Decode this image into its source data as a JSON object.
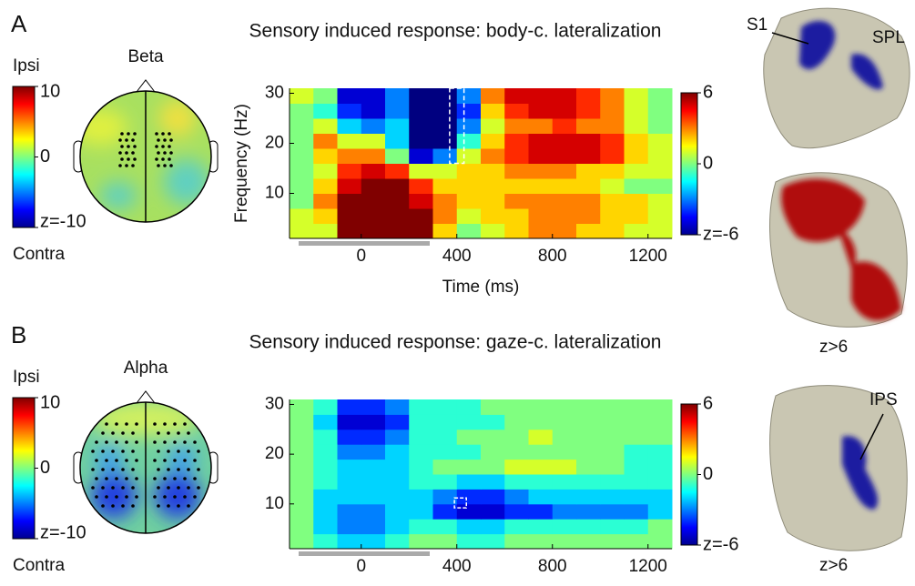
{
  "chart_data": [
    {
      "type": "heatmap",
      "panel": "A",
      "title": "Sensory induced response: body-c. lateralization",
      "xlabel": "Time (ms)",
      "ylabel": "Frequency (Hz)",
      "x": [
        -250,
        -150,
        -50,
        50,
        150,
        250,
        350,
        450,
        550,
        650,
        750,
        850,
        950,
        1050,
        1150,
        1250
      ],
      "y": [
        2.5,
        5.5,
        8.5,
        11.5,
        14.5,
        17.5,
        20.5,
        23.5,
        26.5,
        29.5
      ],
      "z": [
        [
          1,
          1,
          6,
          6,
          6,
          6,
          2,
          0,
          1,
          2,
          3,
          3,
          2,
          2,
          1,
          1
        ],
        [
          1,
          2,
          6,
          6,
          6,
          6,
          3,
          1,
          2,
          2,
          3,
          3,
          3,
          2,
          2,
          1
        ],
        [
          0,
          3,
          6,
          6,
          6,
          5,
          3,
          2,
          2,
          3,
          3,
          3,
          3,
          2,
          2,
          1
        ],
        [
          0,
          2,
          5,
          6,
          6,
          4,
          2,
          2,
          2,
          2,
          2,
          2,
          2,
          1,
          0,
          0
        ],
        [
          0,
          1,
          4,
          5,
          4,
          1,
          1,
          2,
          2,
          3,
          3,
          3,
          2,
          2,
          1,
          1
        ],
        [
          0,
          2,
          3,
          3,
          0,
          -5,
          -3,
          1,
          3,
          4,
          5,
          5,
          5,
          4,
          2,
          1
        ],
        [
          0,
          3,
          1,
          1,
          -2,
          -6,
          -6,
          -1,
          2,
          4,
          5,
          5,
          5,
          4,
          2,
          1
        ],
        [
          0,
          1,
          -2,
          -3,
          -2,
          -6,
          -6,
          -3,
          1,
          3,
          3,
          4,
          3,
          3,
          1,
          0
        ],
        [
          0,
          -1,
          -4,
          -5,
          -3,
          -6,
          -6,
          -4,
          2,
          4,
          5,
          5,
          4,
          3,
          1,
          0
        ],
        [
          1,
          0,
          -5,
          -5,
          -3,
          -6,
          -6,
          -3,
          3,
          5,
          5,
          5,
          4,
          3,
          1,
          0
        ]
      ],
      "xlim": [
        -300,
        1300
      ],
      "ylim": [
        1,
        31
      ],
      "xticks": [
        0,
        400,
        800,
        1200
      ],
      "yticks": [
        10,
        20,
        30
      ],
      "zlim": [
        -6,
        6
      ],
      "zticks": [
        6,
        0,
        {
          "value": -6,
          "label": "z=-6"
        }
      ],
      "topomap": {
        "band": "Beta",
        "top_label": "Ipsi",
        "bottom_label": "Contra",
        "zlim": [
          -10,
          10
        ],
        "zticks": [
          10,
          0,
          {
            "value": -10,
            "label": "z=-10"
          }
        ]
      },
      "brain_labels": [
        "S1",
        "SPL",
        "z>6"
      ]
    },
    {
      "type": "heatmap",
      "panel": "B",
      "title": "Sensory induced response: gaze-c. lateralization",
      "x": [
        -250,
        -150,
        -50,
        50,
        150,
        250,
        350,
        450,
        550,
        650,
        750,
        850,
        950,
        1050,
        1150,
        1250
      ],
      "y": [
        2.5,
        5.5,
        8.5,
        11.5,
        14.5,
        17.5,
        20.5,
        23.5,
        26.5,
        29.5
      ],
      "z": [
        [
          0,
          -1,
          -2,
          -2,
          -1,
          0,
          0,
          -1,
          -1,
          0,
          0,
          0,
          0,
          0,
          0,
          0
        ],
        [
          0,
          -2,
          -3,
          -3,
          -2,
          -1,
          -1,
          -2,
          -2,
          -1,
          -1,
          -1,
          -1,
          -1,
          -1,
          0
        ],
        [
          0,
          -2,
          -3,
          -3,
          -2,
          -2,
          -4,
          -5,
          -5,
          -4,
          -4,
          -3,
          -3,
          -3,
          -3,
          -2
        ],
        [
          0,
          -2,
          -2,
          -2,
          -2,
          -2,
          -3,
          -4,
          -4,
          -3,
          -2,
          -2,
          -2,
          -2,
          -2,
          -2
        ],
        [
          0,
          -1,
          -2,
          -2,
          -2,
          -1,
          -1,
          -2,
          -2,
          -1,
          -1,
          -1,
          -1,
          -1,
          -1,
          -1
        ],
        [
          0,
          -1,
          -2,
          -2,
          -2,
          -1,
          0,
          0,
          0,
          1,
          1,
          1,
          0,
          0,
          -1,
          -1
        ],
        [
          0,
          -1,
          -3,
          -3,
          -2,
          -1,
          -1,
          -1,
          0,
          0,
          0,
          0,
          0,
          0,
          -1,
          -1
        ],
        [
          0,
          -1,
          -4,
          -4,
          -3,
          -1,
          -1,
          0,
          0,
          0,
          1,
          0,
          0,
          0,
          0,
          0
        ],
        [
          0,
          -2,
          -5,
          -5,
          -4,
          -1,
          -1,
          -1,
          -1,
          0,
          0,
          0,
          0,
          0,
          0,
          0
        ],
        [
          0,
          -1,
          -4,
          -4,
          -3,
          -1,
          -1,
          -1,
          0,
          0,
          0,
          0,
          0,
          0,
          0,
          0
        ]
      ],
      "xlim": [
        -300,
        1300
      ],
      "ylim": [
        1,
        31
      ],
      "xticks": [
        0,
        400,
        800,
        1200
      ],
      "yticks": [
        10,
        20,
        30
      ],
      "zlim": [
        -6,
        6
      ],
      "zticks": [
        6,
        0,
        {
          "value": -6,
          "label": "z=-6"
        }
      ],
      "topomap": {
        "band": "Alpha",
        "top_label": "Ipsi",
        "bottom_label": "Contra",
        "zlim": [
          -10,
          10
        ],
        "zticks": [
          10,
          0,
          {
            "value": -10,
            "label": "z=-10"
          }
        ]
      },
      "brain_labels": [
        "IPS",
        "z>6"
      ]
    }
  ]
}
